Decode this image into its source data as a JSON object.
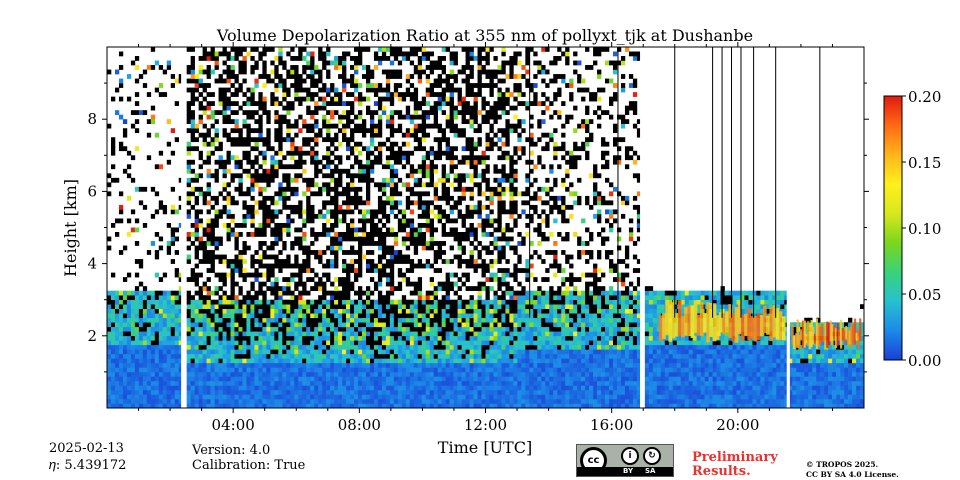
{
  "chart_data": {
    "type": "heatmap",
    "title": "Volume Depolarization Ratio at 355 nm of pollyxt_tjk at Dushanbe",
    "xlabel": "Time [UTC]",
    "ylabel": "Height [km]",
    "xlim_hours": [
      0,
      24
    ],
    "ylim_km": [
      0,
      10
    ],
    "x_ticks": [
      {
        "hour": 4,
        "label": "04:00"
      },
      {
        "hour": 8,
        "label": "08:00"
      },
      {
        "hour": 12,
        "label": "12:00"
      },
      {
        "hour": 16,
        "label": "16:00"
      },
      {
        "hour": 20,
        "label": "20:00"
      }
    ],
    "y_ticks": [
      {
        "value": 2,
        "label": "2"
      },
      {
        "value": 4,
        "label": "4"
      },
      {
        "value": 6,
        "label": "6"
      },
      {
        "value": 8,
        "label": "8"
      }
    ],
    "colorbar": {
      "min": 0.0,
      "max": 0.2,
      "ticks": [
        {
          "value": 0.0,
          "label": "0.00"
        },
        {
          "value": 0.05,
          "label": "0.05"
        },
        {
          "value": 0.1,
          "label": "0.10"
        },
        {
          "value": 0.15,
          "label": "0.15"
        },
        {
          "value": 0.2,
          "label": "0.20"
        }
      ],
      "colors": [
        "#1a3fd6",
        "#1c8ae8",
        "#28c0d0",
        "#3ad27a",
        "#7ad61c",
        "#d8e81c",
        "#fff01c",
        "#ffb41c",
        "#ff6a14",
        "#e21a10"
      ]
    },
    "data_gaps_hours": [
      [
        2.35,
        2.5
      ],
      [
        16.9,
        17.0
      ],
      [
        21.55,
        21.65
      ]
    ],
    "profile_segments": [
      {
        "start": 0.0,
        "end": 2.35,
        "noise_top_km": 10,
        "blue_top_km": 1.7,
        "cyan_top_km": 3.2,
        "noise_density": 0.25
      },
      {
        "start": 2.5,
        "end": 13.0,
        "noise_top_km": 10,
        "blue_top_km": 1.2,
        "cyan_top_km": 3.0,
        "noise_density": 0.75
      },
      {
        "start": 13.0,
        "end": 16.9,
        "noise_top_km": 10,
        "blue_top_km": 1.6,
        "cyan_top_km": 3.3,
        "noise_density": 0.45
      },
      {
        "start": 17.0,
        "end": 21.55,
        "noise_top_km": 3.4,
        "blue_top_km": 1.8,
        "cyan_top_km": 3.2,
        "noise_density": 0.1
      },
      {
        "start": 21.65,
        "end": 24.0,
        "noise_top_km": 3.0,
        "blue_top_km": 1.2,
        "cyan_top_km": 2.4,
        "noise_density": 0.1
      }
    ],
    "aerosol_layers": [
      {
        "start": 17.5,
        "end": 21.5,
        "bottom_km": 1.8,
        "top_km": 3.0,
        "depol": 0.15
      },
      {
        "start": 21.7,
        "end": 23.9,
        "bottom_km": 1.6,
        "top_km": 2.5,
        "depol": 0.17
      }
    ],
    "cloud_streaks_hours": [
      13.4,
      16.2,
      18.0,
      19.2,
      19.5,
      19.8,
      20.1,
      20.5,
      21.2,
      22.6
    ]
  },
  "info": {
    "date": "2025-02-13",
    "eta": "𝜂: 5.439172",
    "version": "Version: 4.0",
    "calibration": "Calibration: True",
    "preliminary_line1": "Preliminary",
    "preliminary_line2": "Results.",
    "copyright_line1": "© TROPOS 2025.",
    "copyright_line2": "CC BY SA 4.0 License.",
    "badge_cc": "cc",
    "badge_by": "BY",
    "badge_sa": "SA"
  }
}
